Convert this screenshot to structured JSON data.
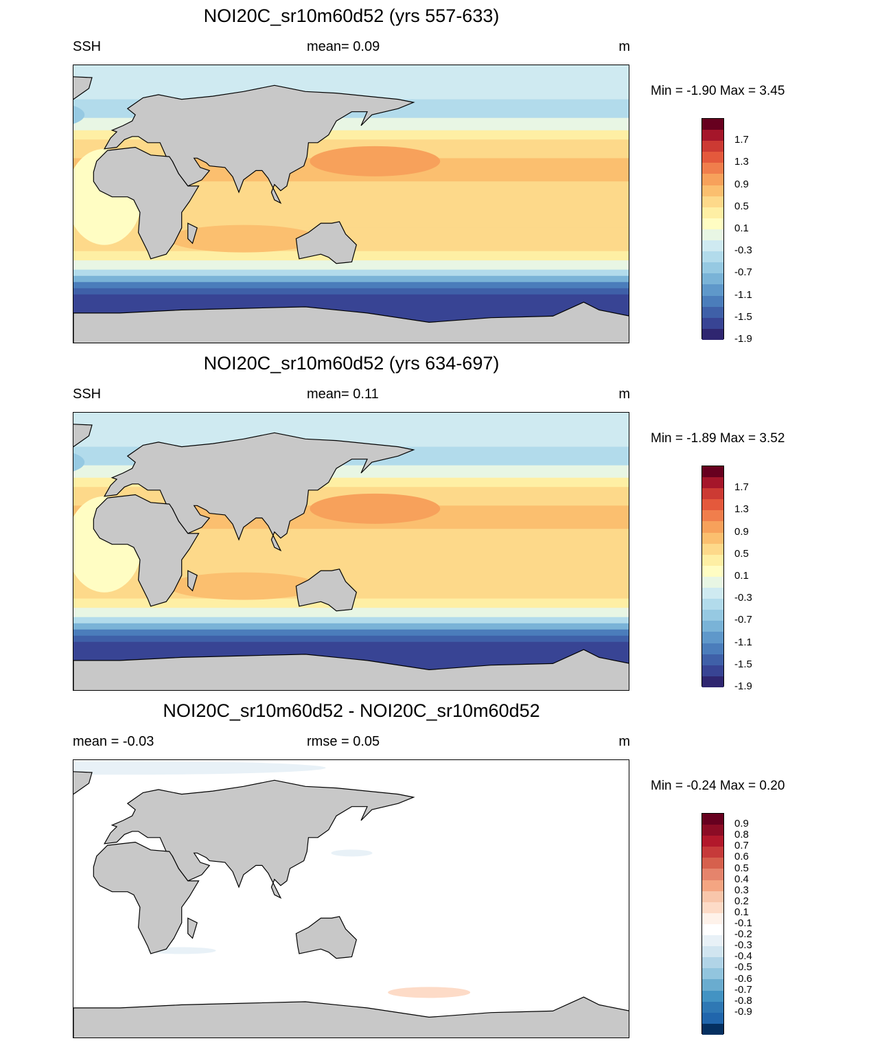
{
  "panels": [
    {
      "title": "NOI20C_sr10m60d52 (yrs 557-633)",
      "left_text": "SSH",
      "center_text": "mean=   0.09",
      "right_text": "m",
      "min_label": "Min =  -1.90",
      "max_label": "Max =   3.45",
      "field": "ssh"
    },
    {
      "title": "NOI20C_sr10m60d52 (yrs 634-697)",
      "left_text": "SSH",
      "center_text": "mean=   0.11",
      "right_text": "m",
      "min_label": "Min =  -1.89",
      "max_label": "Max =   3.52",
      "field": "ssh"
    },
    {
      "title": "NOI20C_sr10m60d52 - NOI20C_sr10m60d52",
      "left_text": "mean =  -0.03",
      "center_text": "rmse =   0.05",
      "right_text": "m",
      "min_label": "Min =  -0.24",
      "max_label": "Max =   0.20",
      "field": "diff"
    }
  ],
  "colorbars": {
    "ssh": {
      "labels": [
        "1.7",
        "1.3",
        "0.9",
        "0.5",
        "0.1",
        "-0.3",
        "-0.7",
        "-1.1",
        "-1.5",
        "-1.9"
      ],
      "colors": [
        "#67001f",
        "#a5162a",
        "#cc3a33",
        "#e4593c",
        "#f07e4c",
        "#f7a15b",
        "#fbbf6f",
        "#fdd98a",
        "#feefa4",
        "#fffdc3",
        "#e8f6e4",
        "#cfeaf1",
        "#b2dbeb",
        "#96c9e2",
        "#7ab3d7",
        "#5f98ca",
        "#4b7dbb",
        "#3f60a8",
        "#384494",
        "#2f2670"
      ]
    },
    "diff": {
      "labels": [
        "0.9",
        "0.8",
        "0.7",
        "0.6",
        "0.5",
        "0.4",
        "0.3",
        "0.2",
        "0.1",
        "-0.1",
        "-0.2",
        "-0.3",
        "-0.4",
        "-0.5",
        "-0.6",
        "-0.7",
        "-0.8",
        "-0.9"
      ],
      "colors": [
        "#67001f",
        "#8c0c25",
        "#b2182b",
        "#c63a3a",
        "#d6604d",
        "#e5846c",
        "#f4a582",
        "#f8c6ab",
        "#fddbc7",
        "#fef2ea",
        "#ffffff",
        "#e8f1f7",
        "#d1e5f0",
        "#b1d4e7",
        "#92c5de",
        "#6aaccf",
        "#4393c3",
        "#2f78b4",
        "#2166ac",
        "#053061"
      ]
    }
  },
  "colors": {
    "land": "#c8c8c8",
    "coast": "#000000"
  }
}
